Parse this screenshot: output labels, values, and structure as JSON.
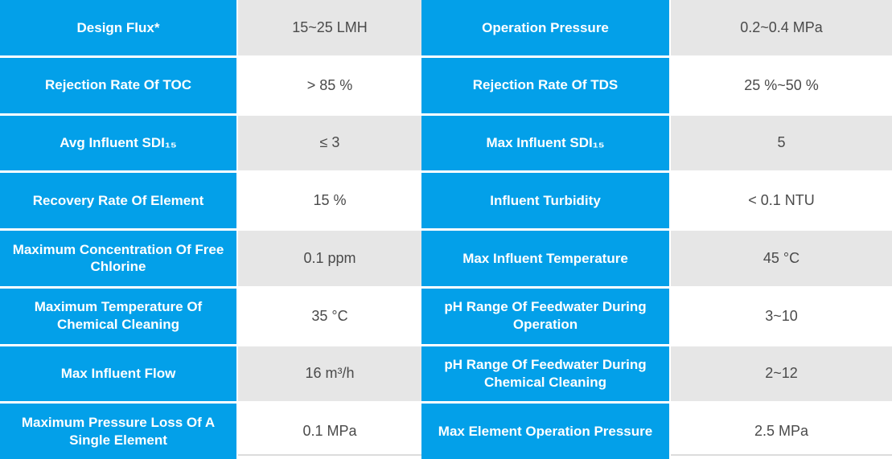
{
  "colors": {
    "label_blue": "#03a0e9",
    "label_text": "#ffffff",
    "value_shade_gray": "#e6e6e6",
    "value_text": "#4a4a4a",
    "separator_white": "#ffffff",
    "bottom_line_gray": "#dcdcdc"
  },
  "table": {
    "rows": [
      {
        "left": {
          "label": "Design Flux*",
          "value": "15~25 LMH"
        },
        "right": {
          "label": "Operation Pressure",
          "value": "0.2~0.4 MPa"
        }
      },
      {
        "left": {
          "label": "Rejection Rate Of TOC",
          "value": "> 85 %"
        },
        "right": {
          "label": "Rejection Rate Of TDS",
          "value": "25 %~50 %"
        }
      },
      {
        "left": {
          "label": "Avg Influent SDI₁₅",
          "value": "≤ 3"
        },
        "right": {
          "label": "Max Influent SDI₁₅",
          "value": "5"
        }
      },
      {
        "left": {
          "label": "Recovery Rate Of Element",
          "value": "15 %"
        },
        "right": {
          "label": "Influent Turbidity",
          "value": "< 0.1 NTU"
        }
      },
      {
        "left": {
          "label": "Maximum Concentration Of Free Chlorine",
          "value": "0.1 ppm"
        },
        "right": {
          "label": "Max Influent Temperature",
          "value": "45 °C"
        }
      },
      {
        "left": {
          "label": "Maximum Temperature Of Chemical Cleaning",
          "value": "35 °C"
        },
        "right": {
          "label": "pH Range Of Feedwater During Operation",
          "value": "3~10"
        }
      },
      {
        "left": {
          "label": "Max Influent Flow",
          "value": "16 m³/h"
        },
        "right": {
          "label": "pH Range Of Feedwater During Chemical Cleaning",
          "value": "2~12"
        }
      },
      {
        "left": {
          "label": "Maximum Pressure Loss Of A Single Element",
          "value": "0.1 MPa"
        },
        "right": {
          "label": "Max Element Operation Pressure",
          "value": "2.5 MPa"
        }
      }
    ]
  }
}
